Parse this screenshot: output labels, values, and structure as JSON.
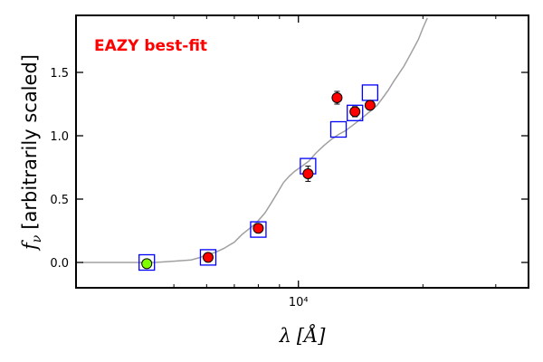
{
  "chart_data": {
    "type": "scatter",
    "title": "",
    "annotation": "EAZY best-fit",
    "annotation_color": "#ff0000",
    "xlabel": "λ [Å]",
    "xlabel_parts": {
      "symbol": "λ",
      "unit": "[Å]"
    },
    "ylabel": "f_ν [arbitrarily scaled]",
    "ylabel_parts": {
      "symbol": "f",
      "subscript": "ν",
      "text": "[arbitrarily scaled]"
    },
    "x_scale": "log",
    "xlim": [
      2900,
      36000
    ],
    "ylim": [
      -0.2,
      1.95
    ],
    "x_major_ticks": [
      {
        "value": 10000,
        "label": "10⁴"
      }
    ],
    "x_minor_ticks": [
      5000,
      6000,
      7000,
      8000,
      9000,
      20000,
      30000
    ],
    "y_ticks": [
      {
        "value": 0.0,
        "label": "0.0"
      },
      {
        "value": 0.5,
        "label": "0.5"
      },
      {
        "value": 1.0,
        "label": "1.0"
      },
      {
        "value": 1.5,
        "label": "1.5"
      }
    ],
    "grid": false,
    "series": [
      {
        "role": "model",
        "kind": "line",
        "color": "#a0a0a0",
        "points": [
          [
            3000,
            0.0
          ],
          [
            3500,
            0.0
          ],
          [
            4000,
            0.0
          ],
          [
            4500,
            0.0
          ],
          [
            5000,
            0.01
          ],
          [
            5500,
            0.02
          ],
          [
            5800,
            0.04
          ],
          [
            6000,
            0.06
          ],
          [
            6300,
            0.08
          ],
          [
            6600,
            0.11
          ],
          [
            7000,
            0.16
          ],
          [
            7300,
            0.22
          ],
          [
            7700,
            0.28
          ],
          [
            8000,
            0.33
          ],
          [
            8300,
            0.39
          ],
          [
            8600,
            0.47
          ],
          [
            8900,
            0.55
          ],
          [
            9200,
            0.63
          ],
          [
            9500,
            0.68
          ],
          [
            9800,
            0.72
          ],
          [
            10200,
            0.76
          ],
          [
            10600,
            0.8
          ],
          [
            11000,
            0.86
          ],
          [
            11500,
            0.92
          ],
          [
            12000,
            0.97
          ],
          [
            12500,
            1.01
          ],
          [
            13000,
            1.04
          ],
          [
            13500,
            1.08
          ],
          [
            14000,
            1.12
          ],
          [
            14500,
            1.16
          ],
          [
            15000,
            1.2
          ],
          [
            15500,
            1.24
          ],
          [
            16000,
            1.3
          ],
          [
            16500,
            1.36
          ],
          [
            17000,
            1.43
          ],
          [
            17500,
            1.49
          ],
          [
            18000,
            1.55
          ],
          [
            18500,
            1.62
          ],
          [
            19000,
            1.69
          ],
          [
            19500,
            1.76
          ],
          [
            20000,
            1.85
          ],
          [
            20500,
            1.93
          ]
        ]
      },
      {
        "role": "model-photometry",
        "kind": "square-marker",
        "color": "#0000ff",
        "points": [
          [
            4300,
            0.0
          ],
          [
            6050,
            0.04
          ],
          [
            8000,
            0.26
          ],
          [
            10550,
            0.76
          ],
          [
            12500,
            1.05
          ],
          [
            13700,
            1.18
          ],
          [
            14900,
            1.34
          ]
        ]
      },
      {
        "role": "observed",
        "kind": "circle-marker",
        "color": "#ff0000",
        "points": [
          [
            6050,
            0.04,
            0.0
          ],
          [
            8000,
            0.27,
            0.0
          ],
          [
            10550,
            0.7,
            0.06
          ],
          [
            12400,
            1.3,
            0.05
          ],
          [
            13700,
            1.19,
            0.04
          ],
          [
            14900,
            1.24,
            0.0
          ]
        ]
      },
      {
        "role": "observed-upper-band",
        "kind": "circle-marker",
        "color": "#7fff00",
        "points": [
          [
            4300,
            -0.01,
            0.0
          ]
        ]
      }
    ]
  }
}
